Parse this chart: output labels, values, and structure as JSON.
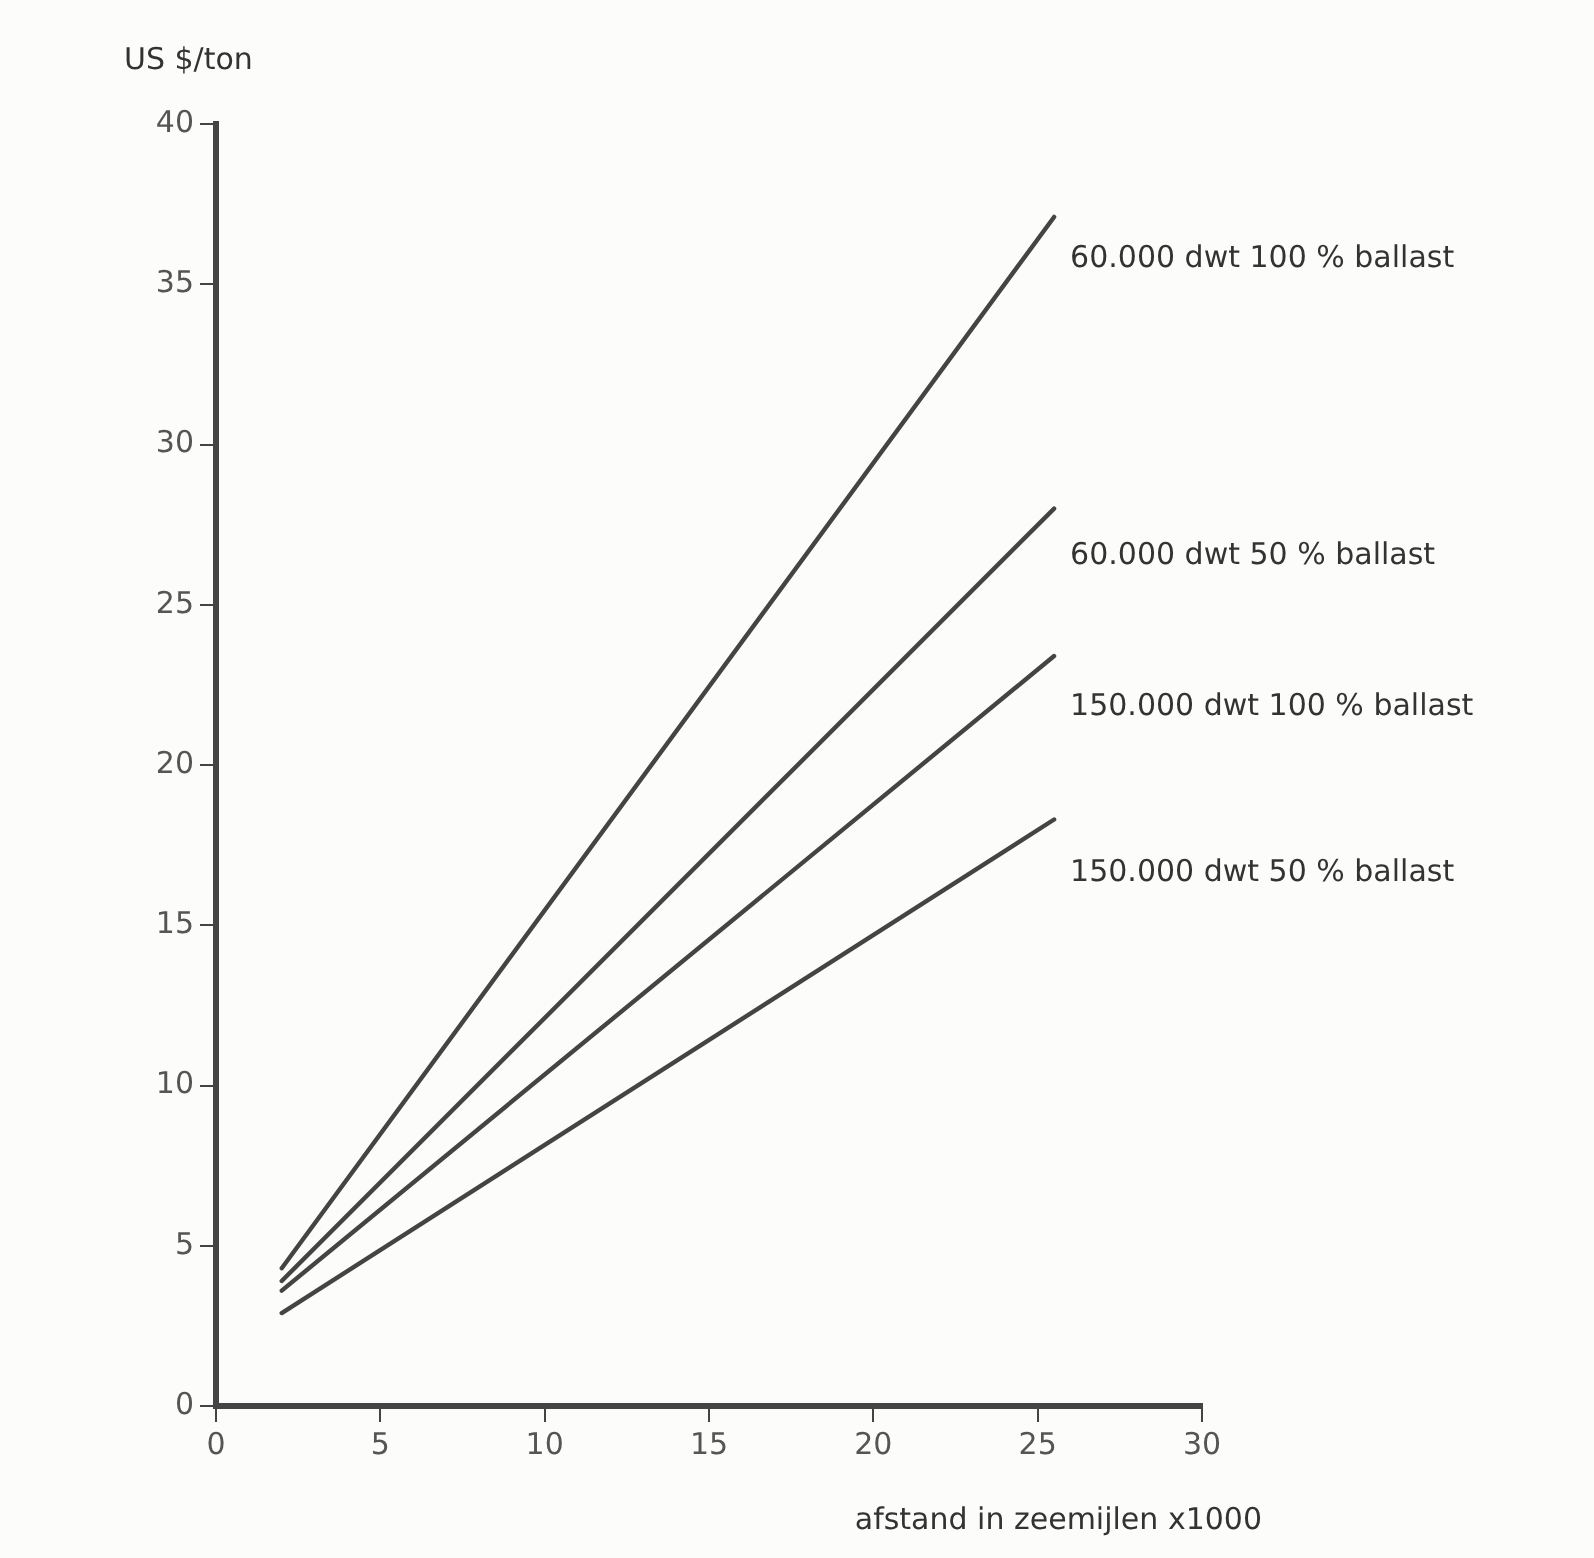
{
  "chart_data": {
    "type": "line",
    "ylabel": "US $/ton",
    "xlabel": "afstand in zeemijlen x1000",
    "xlim": [
      0,
      30
    ],
    "xticks": [
      0,
      5,
      10,
      15,
      20,
      25,
      30
    ],
    "ylim": [
      0,
      40
    ],
    "yticks": [
      0,
      5,
      10,
      15,
      20,
      25,
      30,
      35,
      40
    ],
    "grid": false,
    "legend": false,
    "marker": "none",
    "line_style": "solid",
    "x": [
      2,
      25.5
    ],
    "series": [
      {
        "name": "60.000 dwt 100 % ballast",
        "color": "#444444",
        "values": [
          4.3,
          37.1
        ]
      },
      {
        "name": "60.000 dwt 50 % ballast",
        "color": "#444444",
        "values": [
          3.9,
          28.0
        ]
      },
      {
        "name": "150.000 dwt 100 % ballast",
        "color": "#444444",
        "values": [
          3.6,
          23.4
        ]
      },
      {
        "name": "150.000 dwt 50 % ballast",
        "color": "#444444",
        "values": [
          2.9,
          18.3
        ]
      }
    ]
  }
}
